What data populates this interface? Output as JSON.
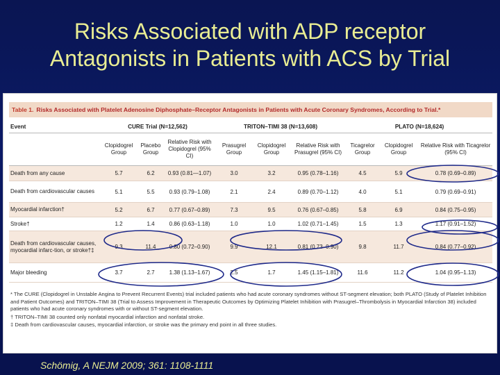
{
  "slide": {
    "title_line1": "Risks Associated with ADP receptor",
    "title_line2": "Antagonists in Patients with ACS by Trial",
    "citation": "Schömig, A NEJM 2009; 361: 1108-1111"
  },
  "table": {
    "label": "Table 1.",
    "caption": "Risks Associated with Platelet Adenosine Diphosphate–Receptor Antagonists in Patients with Acute Coronary Syndromes, According to Trial.*",
    "event_header": "Event",
    "groups": [
      "CURE Trial (N=12,562)",
      "TRITON–TIMI 38 (N=13,608)",
      "PLATO (N=18,624)"
    ],
    "columns": [
      "Clopidogrel Group",
      "Placebo Group",
      "Relative Risk with Clopidogrel (95% CI)",
      "Prasugrel Group",
      "Clopidogrel Group",
      "Relative Risk with Prasugrel (95% CI)",
      "Ticagrelor Group",
      "Clopidogrel Group",
      "Relative Risk with Ticagrelor (95% CI)"
    ],
    "rows": [
      {
        "event": "Death from any cause",
        "cells": [
          "5.7",
          "6.2",
          "0.93 (0.81—1.07)",
          "3.0",
          "3.2",
          "0.95 (0.78–1.16)",
          "4.5",
          "5.9",
          "0.78 (0.69–0.89)"
        ]
      },
      {
        "event": "Death from cardiovascular causes",
        "cells": [
          "5.1",
          "5.5",
          "0.93 (0.79–1.08)",
          "2.1",
          "2.4",
          "0.89 (0.70–1.12)",
          "4.0",
          "5.1",
          "0.79 (0.69–0.91)"
        ]
      },
      {
        "event": "Myocardial infarction†",
        "cells": [
          "5.2",
          "6.7",
          "0.77 (0.67–0.89)",
          "7.3",
          "9.5",
          "0.76 (0.67–0.85)",
          "5.8",
          "6.9",
          "0.84 (0.75–0.95)"
        ]
      },
      {
        "event": "Stroke†",
        "cells": [
          "1.2",
          "1.4",
          "0.86 (0.63–1.18)",
          "1.0",
          "1.0",
          "1.02 (0.71–1.45)",
          "1.5",
          "1.3",
          "1.17 (0.91–1.52)"
        ]
      },
      {
        "event": "Death from cardiovascular causes, myocardial infarc-tion, or stroke†‡",
        "cells": [
          "9.3",
          "11.4",
          "0.80 (0.72–0.90)",
          "9.9",
          "12.1",
          "0.81 (0.73–0.90)",
          "9.8",
          "11.7",
          "0.84 (0.77–0.92)"
        ]
      },
      {
        "event": "Major bleeding",
        "cells": [
          "3.7",
          "2.7",
          "1.38 (1.13–1.67)",
          "2.5",
          "1.7",
          "1.45 (1.15–1.81)",
          "11.6",
          "11.2",
          "1.04 (0.95–1.13)"
        ]
      }
    ],
    "footnotes": [
      "* The CURE (Clopidogrel in Unstable Angina to Prevent Recurrent Events) trial included patients who had acute coronary syndromes without ST-segment elevation; both PLATO (Study of Platelet Inhibition and Patient Outcomes) and TRITON–TIMI 38 (Trial to Assess Improvement in Therapeutic Outcomes by Optimizing Platelet Inhibition with Prasugrel–Thrombolysis in Myocardial Infarction 38) included patients who had acute coronary syndromes with or without ST-segment elevation.",
      "† TRITON–TIMI 38 counted only nonfatal myocardial infarction and nonfatal stroke.",
      "‡ Death from cardiovascular causes, myocardial infarction, or stroke was the primary end point in all three studies."
    ]
  },
  "annotations": {
    "color": "#1f2a8a"
  }
}
